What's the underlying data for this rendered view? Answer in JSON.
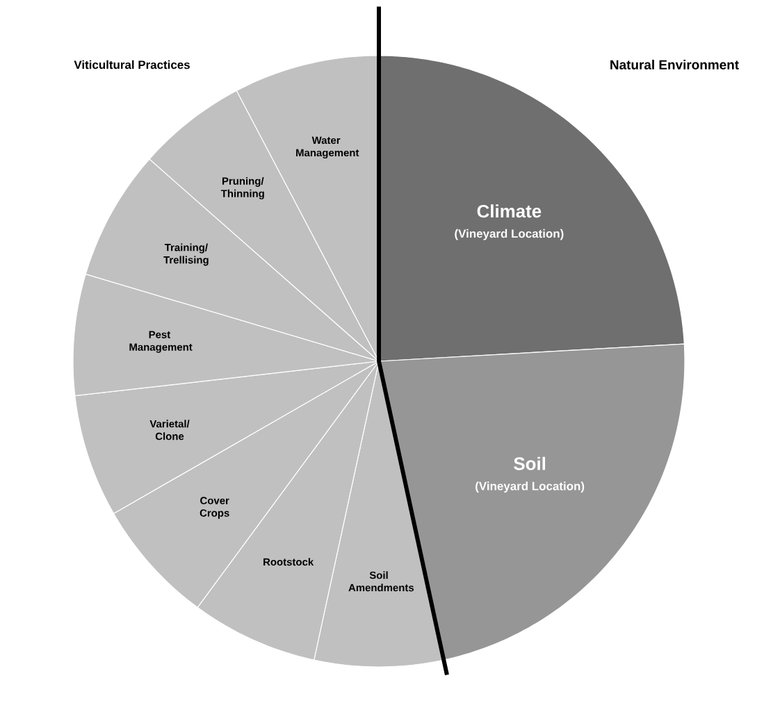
{
  "chart_data": {
    "type": "pie",
    "categories": [
      "Climate",
      "Soil",
      "Soil Amendments",
      "Rootstock",
      "Cover Crops",
      "Varietal/ Clone",
      "Pest Management",
      "Training/ Trellising",
      "Pruning/ Thinning",
      "Water Management"
    ],
    "values": [
      24.1,
      22.5,
      6.8,
      6.7,
      6.6,
      6.5,
      6.4,
      6.9,
      5.8,
      7.7
    ],
    "colors": [
      "#6f6f6f",
      "#969696",
      "#c0c0c0",
      "#c0c0c0",
      "#c0c0c0",
      "#c0c0c0",
      "#c0c0c0",
      "#c0c0c0",
      "#c0c0c0",
      "#c0c0c0"
    ],
    "annotations": [
      "Viticultural Practices",
      "Natural Environment",
      "(Vineyard Location)",
      "(Vineyard Location)"
    ]
  }
}
